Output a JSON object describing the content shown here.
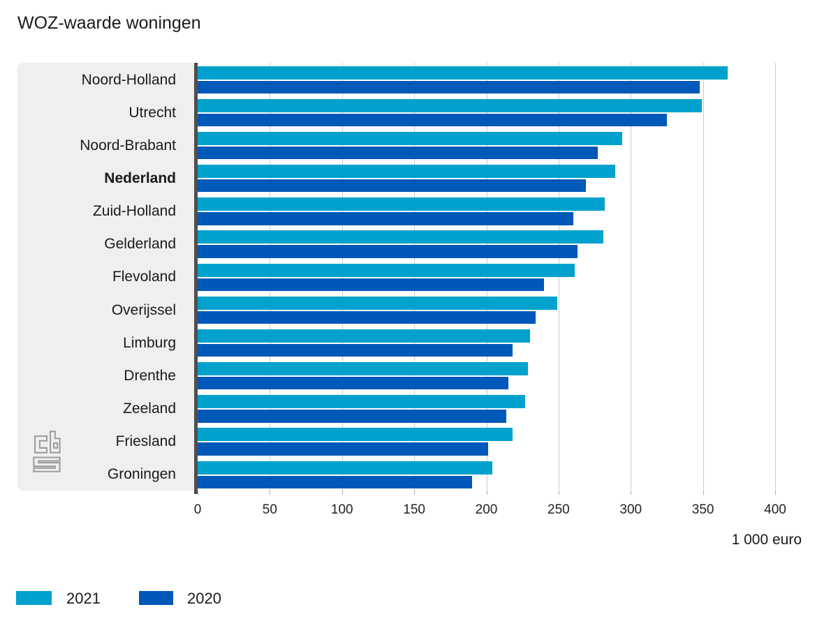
{
  "chart_data": {
    "type": "bar",
    "orientation": "horizontal",
    "title": "WOZ-waarde woningen",
    "xlabel": "1 000 euro",
    "xlim": [
      0,
      400
    ],
    "xticks": [
      0,
      50,
      100,
      150,
      200,
      250,
      300,
      350,
      400
    ],
    "grid": true,
    "legend_position": "bottom-left",
    "categories": [
      "Noord-Holland",
      "Utrecht",
      "Noord-Brabant",
      "Nederland",
      "Zuid-Holland",
      "Gelderland",
      "Flevoland",
      "Overijssel",
      "Limburg",
      "Drenthe",
      "Zeeland",
      "Friesland",
      "Groningen"
    ],
    "emphasized_category": "Nederland",
    "series": [
      {
        "name": "2021",
        "color": "#00a1cd",
        "values": [
          367,
          349,
          294,
          289,
          282,
          281,
          261,
          249,
          230,
          229,
          227,
          218,
          204
        ]
      },
      {
        "name": "2020",
        "color": "#0058b8",
        "values": [
          348,
          325,
          277,
          269,
          260,
          263,
          240,
          234,
          218,
          215,
          214,
          201,
          190
        ]
      }
    ]
  },
  "branding": {
    "logo_name": "CBS"
  },
  "colors": {
    "panel_background": "#efefef",
    "axis_line": "#4f4f4f",
    "gridline": "#cccccc",
    "tick": "#b0b0b0",
    "text": "#1a1a1a",
    "logo": "#9c9c9c"
  }
}
